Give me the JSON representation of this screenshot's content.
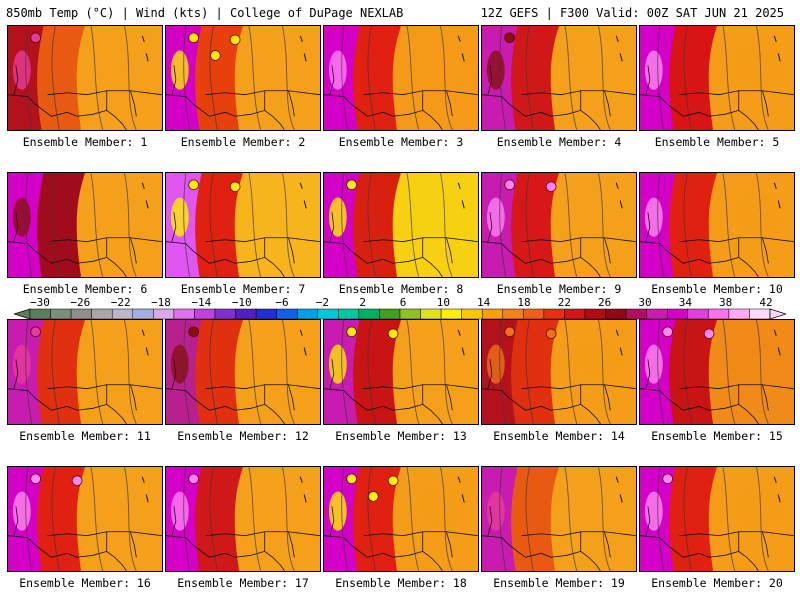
{
  "header": {
    "left": "850mb Temp (°C) | Wind (kts) | College of DuPage NEXLAB",
    "right": "12Z GEFS | F300 Valid: 00Z SAT JUN 21 2025"
  },
  "members": [
    {
      "label": "Ensemble Member: 1",
      "west": "#b3121c",
      "mid": "#e85a12",
      "east": "#f5a01a",
      "hot": "#e83a9a",
      "bubbles": 1
    },
    {
      "label": "Ensemble Member: 2",
      "west": "#d400c8",
      "mid": "#e8400c",
      "east": "#f5a01a",
      "hot": "#ffe800",
      "bubbles": 3
    },
    {
      "label": "Ensemble Member: 3",
      "west": "#d400c8",
      "mid": "#e02010",
      "east": "#f59a18",
      "hot": "#ff7ff6",
      "bubbles": 0
    },
    {
      "label": "Ensemble Member: 4",
      "west": "#c81bb0",
      "mid": "#d01818",
      "east": "#f5a01a",
      "hot": "#8a1010",
      "bubbles": 1
    },
    {
      "label": "Ensemble Member: 5",
      "west": "#d400c8",
      "mid": "#d81414",
      "east": "#f59c18",
      "hot": "#ff88f0",
      "bubbles": 0
    },
    {
      "label": "Ensemble Member: 6",
      "west": "#d400c8",
      "mid": "#a00c1c",
      "east": "#f5a01a",
      "hot": "#8a1010",
      "bubbles": 0
    },
    {
      "label": "Ensemble Member: 7",
      "west": "#e056f0",
      "mid": "#e02010",
      "east": "#f8b41c",
      "hot": "#fff000",
      "bubbles": 2
    },
    {
      "label": "Ensemble Member: 8",
      "west": "#d400c8",
      "mid": "#d82010",
      "east": "#f8d012",
      "hot": "#fff000",
      "bubbles": 1
    },
    {
      "label": "Ensemble Member: 9",
      "west": "#c81bb0",
      "mid": "#d81818",
      "east": "#f5a01a",
      "hot": "#ff7ff6",
      "bubbles": 2
    },
    {
      "label": "Ensemble Member: 10",
      "west": "#d400c8",
      "mid": "#e02010",
      "east": "#f59c18",
      "hot": "#ff88f0",
      "bubbles": 0
    },
    {
      "label": "Ensemble Member: 11",
      "west": "#c81bb0",
      "mid": "#e03010",
      "east": "#f5a01a",
      "hot": "#e83a9a",
      "bubbles": 1
    },
    {
      "label": "Ensemble Member: 12",
      "west": "#b82090",
      "mid": "#e03010",
      "east": "#f5a01a",
      "hot": "#8a1010",
      "bubbles": 1
    },
    {
      "label": "Ensemble Member: 13",
      "west": "#c81bb0",
      "mid": "#c81414",
      "east": "#f5a01a",
      "hot": "#ffe800",
      "bubbles": 2
    },
    {
      "label": "Ensemble Member: 14",
      "west": "#b3121c",
      "mid": "#e03010",
      "east": "#f59c18",
      "hot": "#f07018",
      "bubbles": 2
    },
    {
      "label": "Ensemble Member: 15",
      "west": "#d400c8",
      "mid": "#c81414",
      "east": "#f08a18",
      "hot": "#ff88f0",
      "bubbles": 2
    },
    {
      "label": "Ensemble Member: 16",
      "west": "#d400c8",
      "mid": "#e02010",
      "east": "#f5a01a",
      "hot": "#ff88f0",
      "bubbles": 2
    },
    {
      "label": "Ensemble Member: 17",
      "west": "#d400c8",
      "mid": "#d01818",
      "east": "#f5a01a",
      "hot": "#ff7ff6",
      "bubbles": 1
    },
    {
      "label": "Ensemble Member: 18",
      "west": "#d400c8",
      "mid": "#e02010",
      "east": "#f59c18",
      "hot": "#fff000",
      "bubbles": 3
    },
    {
      "label": "Ensemble Member: 19",
      "west": "#c81bb0",
      "mid": "#e85a12",
      "east": "#f5a01a",
      "hot": "#e83a9a",
      "bubbles": 0
    },
    {
      "label": "Ensemble Member: 20",
      "west": "#d400c8",
      "mid": "#e02010",
      "east": "#f59c18",
      "hot": "#ff88f0",
      "bubbles": 1
    }
  ],
  "colorbar": {
    "tick_labels": [
      "−30",
      "−26",
      "−22",
      "−18",
      "−14",
      "−10",
      "−6",
      "−2",
      "2",
      "6",
      "10",
      "14",
      "18",
      "22",
      "26",
      "30",
      "34",
      "38",
      "42"
    ],
    "colors": [
      "#5c7d5c",
      "#7a8f7a",
      "#8f8f8f",
      "#a8a8a8",
      "#b8b8cc",
      "#a0b0e0",
      "#d8a8e8",
      "#e070f0",
      "#c040e0",
      "#8030d0",
      "#5020c0",
      "#2030d0",
      "#1060e8",
      "#00a0e8",
      "#00c8d8",
      "#00c8a0",
      "#00b060",
      "#40a020",
      "#90c020",
      "#e0e020",
      "#f8f000",
      "#f8c800",
      "#f8a000",
      "#f48018",
      "#f06018",
      "#e83010",
      "#d01818",
      "#b00c14",
      "#900814",
      "#b01060",
      "#c81bb0",
      "#d400c8",
      "#e040e0",
      "#ff70f0",
      "#ffaaf8",
      "#ffd8fc"
    ]
  }
}
